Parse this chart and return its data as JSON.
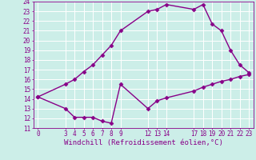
{
  "title": "",
  "xlabel": "Windchill (Refroidissement éolien,°C)",
  "ylabel": "",
  "background_color": "#cceee8",
  "line_color": "#880088",
  "grid_color": "#ffffff",
  "ylim": [
    11,
    24
  ],
  "xlim": [
    -0.5,
    23.5
  ],
  "yticks": [
    11,
    12,
    13,
    14,
    15,
    16,
    17,
    18,
    19,
    20,
    21,
    22,
    23,
    24
  ],
  "xticks": [
    0,
    3,
    4,
    5,
    6,
    7,
    8,
    9,
    12,
    13,
    14,
    17,
    18,
    19,
    20,
    21,
    22,
    23
  ],
  "line1_x": [
    0,
    3,
    4,
    5,
    6,
    7,
    8,
    9,
    12,
    13,
    14,
    17,
    18,
    19,
    20,
    21,
    22,
    23
  ],
  "line1_y": [
    14.2,
    15.5,
    16.0,
    16.8,
    17.5,
    18.5,
    19.5,
    21.0,
    23.0,
    23.2,
    23.7,
    23.2,
    23.7,
    21.7,
    21.0,
    19.0,
    17.5,
    16.7
  ],
  "line2_x": [
    0,
    3,
    4,
    5,
    6,
    7,
    8,
    9,
    12,
    13,
    14,
    17,
    18,
    19,
    20,
    21,
    22,
    23
  ],
  "line2_y": [
    14.2,
    13.0,
    12.1,
    12.1,
    12.1,
    11.7,
    11.5,
    15.5,
    13.0,
    13.8,
    14.1,
    14.8,
    15.2,
    15.5,
    15.8,
    16.0,
    16.3,
    16.5
  ],
  "marker": "D",
  "marker_size": 2.5,
  "line_width": 1.0,
  "tick_fontsize": 5.5,
  "xlabel_fontsize": 6.5
}
